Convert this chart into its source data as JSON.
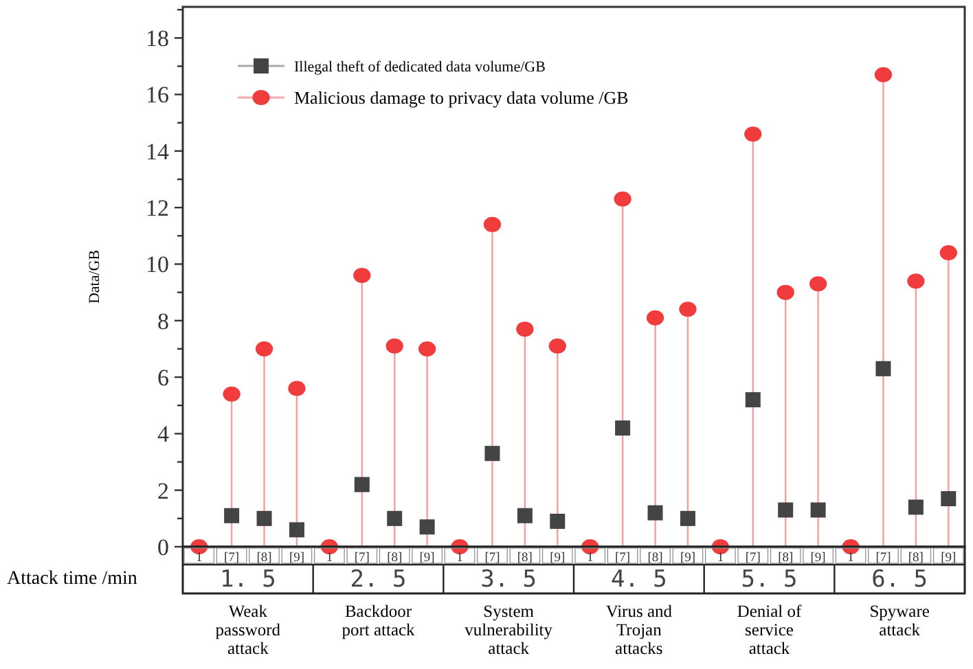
{
  "chart_data": {
    "type": "lollipop",
    "ylabel": "Data/GB",
    "xlabel": "Attack time /min",
    "categories": [
      "1",
      "[7]",
      "[8]",
      "[9]",
      "1",
      "[7]",
      "[8]",
      "[9]",
      "1",
      "[7]",
      "[8]",
      "[9]",
      "1",
      "[7]",
      "[8]",
      "[9]",
      "1",
      "[7]",
      "[8]",
      "[9]",
      "1",
      "[7]",
      "[8]",
      "[9]"
    ],
    "series": [
      {
        "name": "Illegal theft of dedicated data volume/GB",
        "type": "scatter",
        "marker": "square",
        "color": "#444444",
        "values": [
          null,
          1.1,
          1.0,
          0.6,
          null,
          2.2,
          1.0,
          0.7,
          null,
          3.3,
          1.1,
          0.9,
          null,
          4.2,
          1.2,
          1.0,
          null,
          5.2,
          1.3,
          1.3,
          null,
          6.3,
          1.4,
          1.7
        ]
      },
      {
        "name": "Malicious damage to privacy data volume /GB",
        "type": "lollipop",
        "marker": "circle",
        "color": "#f03c3c",
        "values": [
          0,
          5.4,
          7.0,
          5.6,
          0,
          9.6,
          7.1,
          7.0,
          0,
          11.4,
          7.7,
          7.1,
          0,
          12.3,
          8.1,
          8.4,
          0,
          14.6,
          9.0,
          9.3,
          0,
          16.7,
          9.4,
          10.4
        ]
      }
    ],
    "ylim": [
      0,
      19.1
    ],
    "yticks": [
      0,
      {
        "value": 1,
        "label": null
      },
      2,
      {
        "value": 3,
        "label": null
      },
      4,
      {
        "value": 5,
        "label": null
      },
      6,
      {
        "value": 7,
        "label": null
      },
      8,
      {
        "value": 9,
        "label": null
      },
      10,
      {
        "value": 11,
        "label": null
      },
      12,
      {
        "value": 13,
        "label": null
      },
      14,
      {
        "value": 15,
        "label": null
      },
      16,
      {
        "value": 17,
        "label": null
      },
      18,
      {
        "value": 19,
        "label": null
      }
    ],
    "legend": "top left",
    "annotations": [
      "1. 5",
      "2. 5",
      "3. 5",
      "4. 5",
      "5. 5",
      "6. 5",
      "Weak password attack",
      "Backdoor port attack",
      "System vulnerability attack",
      "Virus and Trojan attacks",
      "Denial of service attack",
      "Spyware attack"
    ]
  }
}
